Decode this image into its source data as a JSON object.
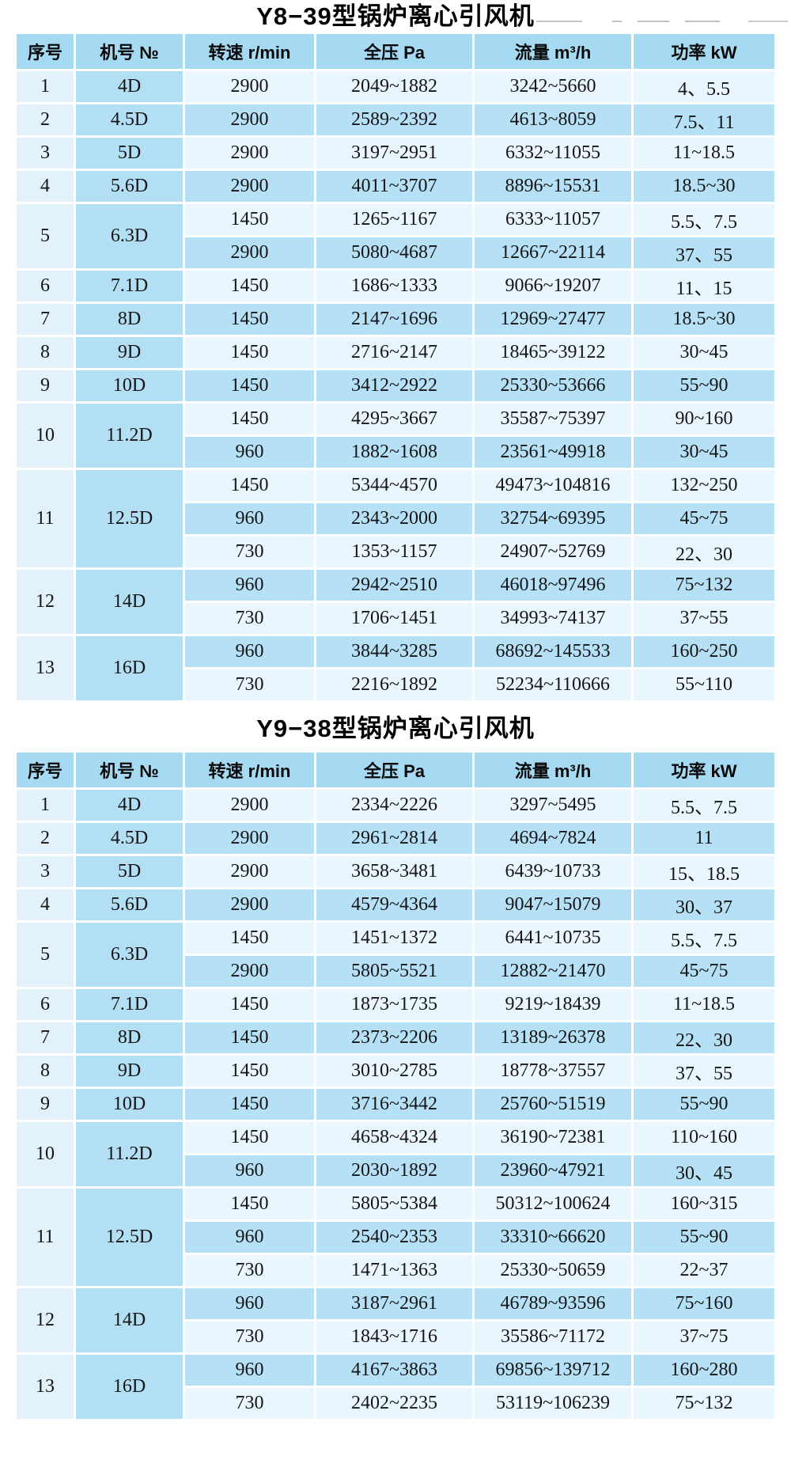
{
  "page": {
    "background": "#ffffff"
  },
  "colors": {
    "header_bg": "#a6d9f2",
    "row_light": "#eaf6fd",
    "row_medium": "#b5e0f6",
    "seq_column_bg": "#e2f1fa",
    "model_column_bg": "#b3dff5",
    "text": "#111111"
  },
  "tables": [
    {
      "title": "Y8−39型锅炉离心引风机",
      "columns": [
        "序号",
        "机号 №",
        "转速 r/min",
        "全压 Pa",
        "流量 m³/h",
        "功率 kW"
      ],
      "groups": [
        {
          "seq": "1",
          "model": "4D",
          "rows": [
            [
              "2900",
              "2049~1882",
              "3242~5660",
              "4、5.5"
            ]
          ]
        },
        {
          "seq": "2",
          "model": "4.5D",
          "rows": [
            [
              "2900",
              "2589~2392",
              "4613~8059",
              "7.5、11"
            ]
          ]
        },
        {
          "seq": "3",
          "model": "5D",
          "rows": [
            [
              "2900",
              "3197~2951",
              "6332~11055",
              "11~18.5"
            ]
          ]
        },
        {
          "seq": "4",
          "model": "5.6D",
          "rows": [
            [
              "2900",
              "4011~3707",
              "8896~15531",
              "18.5~30"
            ]
          ]
        },
        {
          "seq": "5",
          "model": "6.3D",
          "rows": [
            [
              "1450",
              "1265~1167",
              "6333~11057",
              "5.5、7.5"
            ],
            [
              "2900",
              "5080~4687",
              "12667~22114",
              "37、55"
            ]
          ]
        },
        {
          "seq": "6",
          "model": "7.1D",
          "rows": [
            [
              "1450",
              "1686~1333",
              "9066~19207",
              "11、15"
            ]
          ]
        },
        {
          "seq": "7",
          "model": "8D",
          "rows": [
            [
              "1450",
              "2147~1696",
              "12969~27477",
              "18.5~30"
            ]
          ]
        },
        {
          "seq": "8",
          "model": "9D",
          "rows": [
            [
              "1450",
              "2716~2147",
              "18465~39122",
              "30~45"
            ]
          ]
        },
        {
          "seq": "9",
          "model": "10D",
          "rows": [
            [
              "1450",
              "3412~2922",
              "25330~53666",
              "55~90"
            ]
          ]
        },
        {
          "seq": "10",
          "model": "11.2D",
          "rows": [
            [
              "1450",
              "4295~3667",
              "35587~75397",
              "90~160"
            ],
            [
              "960",
              "1882~1608",
              "23561~49918",
              "30~45"
            ]
          ]
        },
        {
          "seq": "11",
          "model": "12.5D",
          "rows": [
            [
              "1450",
              "5344~4570",
              "49473~104816",
              "132~250"
            ],
            [
              "960",
              "2343~2000",
              "32754~69395",
              "45~75"
            ],
            [
              "730",
              "1353~1157",
              "24907~52769",
              "22、30"
            ]
          ]
        },
        {
          "seq": "12",
          "model": "14D",
          "rows": [
            [
              "960",
              "2942~2510",
              "46018~97496",
              "75~132"
            ],
            [
              "730",
              "1706~1451",
              "34993~74137",
              "37~55"
            ]
          ]
        },
        {
          "seq": "13",
          "model": "16D",
          "rows": [
            [
              "960",
              "3844~3285",
              "68692~145533",
              "160~250"
            ],
            [
              "730",
              "2216~1892",
              "52234~110666",
              "55~110"
            ]
          ]
        }
      ]
    },
    {
      "title": "Y9−38型锅炉离心引风机",
      "columns": [
        "序号",
        "机号 №",
        "转速 r/min",
        "全压 Pa",
        "流量 m³/h",
        "功率 kW"
      ],
      "groups": [
        {
          "seq": "1",
          "model": "4D",
          "rows": [
            [
              "2900",
              "2334~2226",
              "3297~5495",
              "5.5、7.5"
            ]
          ]
        },
        {
          "seq": "2",
          "model": "4.5D",
          "rows": [
            [
              "2900",
              "2961~2814",
              "4694~7824",
              "11"
            ]
          ]
        },
        {
          "seq": "3",
          "model": "5D",
          "rows": [
            [
              "2900",
              "3658~3481",
              "6439~10733",
              "15、18.5"
            ]
          ]
        },
        {
          "seq": "4",
          "model": "5.6D",
          "rows": [
            [
              "2900",
              "4579~4364",
              "9047~15079",
              "30、37"
            ]
          ]
        },
        {
          "seq": "5",
          "model": "6.3D",
          "rows": [
            [
              "1450",
              "1451~1372",
              "6441~10735",
              "5.5、7.5"
            ],
            [
              "2900",
              "5805~5521",
              "12882~21470",
              "45~75"
            ]
          ]
        },
        {
          "seq": "6",
          "model": "7.1D",
          "rows": [
            [
              "1450",
              "1873~1735",
              "9219~18439",
              "11~18.5"
            ]
          ]
        },
        {
          "seq": "7",
          "model": "8D",
          "rows": [
            [
              "1450",
              "2373~2206",
              "13189~26378",
              "22、30"
            ]
          ]
        },
        {
          "seq": "8",
          "model": "9D",
          "rows": [
            [
              "1450",
              "3010~2785",
              "18778~37557",
              "37、55"
            ]
          ]
        },
        {
          "seq": "9",
          "model": "10D",
          "rows": [
            [
              "1450",
              "3716~3442",
              "25760~51519",
              "55~90"
            ]
          ]
        },
        {
          "seq": "10",
          "model": "11.2D",
          "rows": [
            [
              "1450",
              "4658~4324",
              "36190~72381",
              "110~160"
            ],
            [
              "960",
              "2030~1892",
              "23960~47921",
              "30、45"
            ]
          ]
        },
        {
          "seq": "11",
          "model": "12.5D",
          "rows": [
            [
              "1450",
              "5805~5384",
              "50312~100624",
              "160~315"
            ],
            [
              "960",
              "2540~2353",
              "33310~66620",
              "55~90"
            ],
            [
              "730",
              "1471~1363",
              "25330~50659",
              "22~37"
            ]
          ]
        },
        {
          "seq": "12",
          "model": "14D",
          "rows": [
            [
              "960",
              "3187~2961",
              "46789~93596",
              "75~160"
            ],
            [
              "730",
              "1843~1716",
              "35586~71172",
              "37~75"
            ]
          ]
        },
        {
          "seq": "13",
          "model": "16D",
          "rows": [
            [
              "960",
              "4167~3863",
              "69856~139712",
              "160~280"
            ],
            [
              "730",
              "2402~2235",
              "53119~106239",
              "75~132"
            ]
          ]
        }
      ]
    }
  ]
}
